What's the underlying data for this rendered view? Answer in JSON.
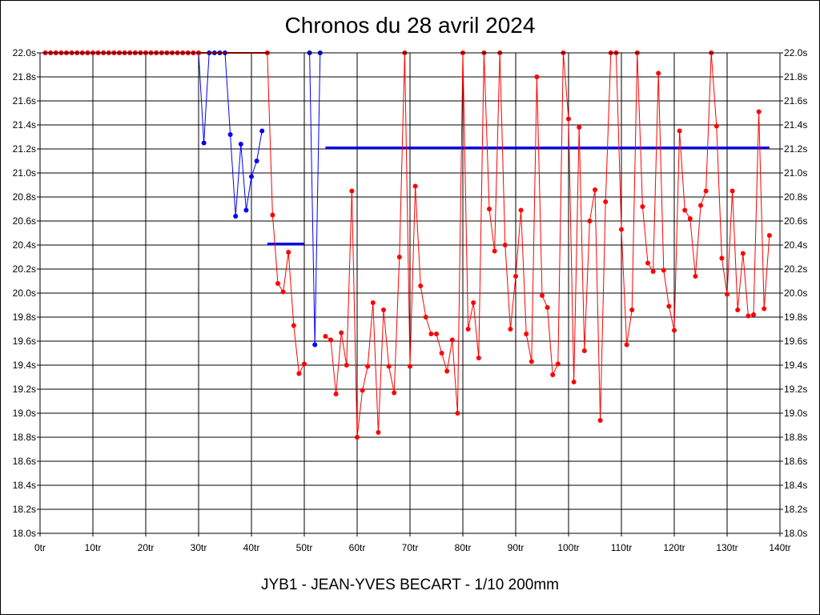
{
  "chart_data": {
    "type": "line",
    "title": "Chronos du 28 avril 2024",
    "subtitle": "JYB1 - JEAN-YVES BECART - 1/10 200mm",
    "xlabel": "",
    "ylabel": "",
    "xlim": [
      0,
      140
    ],
    "ylim": [
      18.0,
      22.0
    ],
    "x_ticks": [
      "0tr",
      "10tr",
      "20tr",
      "30tr",
      "40tr",
      "50tr",
      "60tr",
      "70tr",
      "80tr",
      "90tr",
      "100tr",
      "110tr",
      "120tr",
      "130tr",
      "140tr"
    ],
    "y_ticks": [
      "18.0s",
      "18.2s",
      "18.4s",
      "18.6s",
      "18.8s",
      "19.0s",
      "19.2s",
      "19.4s",
      "19.6s",
      "19.8s",
      "20.0s",
      "20.2s",
      "20.4s",
      "20.6s",
      "20.8s",
      "21.0s",
      "21.2s",
      "21.4s",
      "21.6s",
      "21.8s",
      "22.0s"
    ],
    "grid": true,
    "series": [
      {
        "color": "#0000ff",
        "values": [
          [
            1,
            22.0
          ],
          [
            2,
            22.0
          ],
          [
            3,
            22.0
          ],
          [
            4,
            22.0
          ],
          [
            5,
            22.0
          ],
          [
            6,
            22.0
          ],
          [
            7,
            22.0
          ],
          [
            8,
            22.0
          ],
          [
            9,
            22.0
          ],
          [
            10,
            22.0
          ],
          [
            11,
            22.0
          ],
          [
            12,
            22.0
          ],
          [
            13,
            22.0
          ],
          [
            14,
            22.0
          ],
          [
            15,
            22.0
          ],
          [
            16,
            22.0
          ],
          [
            17,
            22.0
          ],
          [
            18,
            22.0
          ],
          [
            19,
            22.0
          ],
          [
            20,
            22.0
          ],
          [
            21,
            22.0
          ],
          [
            22,
            22.0
          ],
          [
            23,
            22.0
          ],
          [
            24,
            22.0
          ],
          [
            25,
            22.0
          ],
          [
            26,
            22.0
          ],
          [
            27,
            22.0
          ],
          [
            28,
            22.0
          ],
          [
            29,
            22.0
          ],
          [
            30,
            22.0
          ],
          [
            31,
            21.25
          ],
          [
            32,
            22.0
          ],
          [
            33,
            22.0
          ],
          [
            34,
            22.0
          ],
          [
            35,
            22.0
          ],
          [
            36,
            21.32
          ],
          [
            37,
            20.64
          ],
          [
            38,
            21.24
          ],
          [
            39,
            20.69
          ],
          [
            40,
            20.97
          ],
          [
            41,
            21.1
          ],
          [
            42,
            21.35
          ],
          [
            51,
            22.0
          ],
          [
            52,
            19.57
          ],
          [
            53,
            22.0
          ]
        ]
      },
      {
        "color": "#ff0000",
        "values": [
          [
            1,
            22.0
          ],
          [
            2,
            22.0
          ],
          [
            3,
            22.0
          ],
          [
            4,
            22.0
          ],
          [
            5,
            22.0
          ],
          [
            6,
            22.0
          ],
          [
            7,
            22.0
          ],
          [
            8,
            22.0
          ],
          [
            9,
            22.0
          ],
          [
            10,
            22.0
          ],
          [
            11,
            22.0
          ],
          [
            12,
            22.0
          ],
          [
            13,
            22.0
          ],
          [
            14,
            22.0
          ],
          [
            15,
            22.0
          ],
          [
            16,
            22.0
          ],
          [
            17,
            22.0
          ],
          [
            18,
            22.0
          ],
          [
            19,
            22.0
          ],
          [
            20,
            22.0
          ],
          [
            21,
            22.0
          ],
          [
            22,
            22.0
          ],
          [
            23,
            22.0
          ],
          [
            24,
            22.0
          ],
          [
            25,
            22.0
          ],
          [
            26,
            22.0
          ],
          [
            27,
            22.0
          ],
          [
            28,
            22.0
          ],
          [
            29,
            22.0
          ],
          [
            30,
            22.0
          ],
          [
            43,
            22.0
          ],
          [
            44,
            20.65
          ],
          [
            45,
            20.08
          ],
          [
            46,
            20.01
          ],
          [
            47,
            20.34
          ],
          [
            48,
            19.73
          ],
          [
            49,
            19.33
          ],
          [
            50,
            19.41
          ],
          [
            54,
            19.64
          ],
          [
            55,
            19.61
          ],
          [
            56,
            19.16
          ],
          [
            57,
            19.67
          ],
          [
            58,
            19.4
          ],
          [
            59,
            20.85
          ],
          [
            60,
            18.8
          ],
          [
            61,
            19.19
          ],
          [
            62,
            19.39
          ],
          [
            63,
            19.92
          ],
          [
            64,
            18.84
          ],
          [
            65,
            19.86
          ],
          [
            66,
            19.39
          ],
          [
            67,
            19.17
          ],
          [
            68,
            20.3
          ],
          [
            69,
            22.0
          ],
          [
            70,
            19.39
          ],
          [
            71,
            20.89
          ],
          [
            72,
            20.06
          ],
          [
            73,
            19.8
          ],
          [
            74,
            19.66
          ],
          [
            75,
            19.66
          ],
          [
            76,
            19.5
          ],
          [
            77,
            19.35
          ],
          [
            78,
            19.61
          ],
          [
            79,
            19.0
          ],
          [
            80,
            22.0
          ],
          [
            81,
            19.7
          ],
          [
            82,
            19.92
          ],
          [
            83,
            19.46
          ],
          [
            84,
            22.0
          ],
          [
            85,
            20.7
          ],
          [
            86,
            20.35
          ],
          [
            87,
            22.0
          ],
          [
            88,
            20.4
          ],
          [
            89,
            19.7
          ],
          [
            90,
            20.14
          ],
          [
            91,
            20.69
          ],
          [
            92,
            19.66
          ],
          [
            93,
            19.43
          ],
          [
            94,
            21.8
          ],
          [
            95,
            19.98
          ],
          [
            96,
            19.88
          ],
          [
            97,
            19.32
          ],
          [
            98,
            19.41
          ],
          [
            99,
            22.0
          ],
          [
            100,
            21.45
          ],
          [
            101,
            19.26
          ],
          [
            102,
            21.38
          ],
          [
            103,
            19.52
          ],
          [
            104,
            20.6
          ],
          [
            105,
            20.86
          ],
          [
            106,
            18.94
          ],
          [
            107,
            20.76
          ],
          [
            108,
            22.0
          ],
          [
            109,
            22.0
          ],
          [
            110,
            20.53
          ],
          [
            111,
            19.57
          ],
          [
            112,
            19.86
          ],
          [
            113,
            22.0
          ],
          [
            114,
            20.72
          ],
          [
            115,
            20.25
          ],
          [
            116,
            20.18
          ],
          [
            117,
            21.83
          ],
          [
            118,
            20.19
          ],
          [
            119,
            19.89
          ],
          [
            120,
            19.69
          ],
          [
            121,
            21.35
          ],
          [
            122,
            20.69
          ],
          [
            123,
            20.62
          ],
          [
            124,
            20.14
          ],
          [
            125,
            20.73
          ],
          [
            126,
            20.85
          ],
          [
            127,
            22.0
          ],
          [
            128,
            21.39
          ],
          [
            129,
            20.29
          ],
          [
            130,
            19.99
          ],
          [
            131,
            20.85
          ],
          [
            132,
            19.86
          ],
          [
            133,
            20.33
          ],
          [
            134,
            19.81
          ],
          [
            135,
            19.82
          ],
          [
            136,
            21.51
          ],
          [
            137,
            19.87
          ],
          [
            138,
            20.48
          ]
        ]
      }
    ],
    "reference_lines": [
      {
        "color": "#0000ff",
        "x": [
          43,
          50
        ],
        "y": 20.41
      },
      {
        "color": "#0000ff",
        "x": [
          54,
          138
        ],
        "y": 21.21
      }
    ]
  }
}
